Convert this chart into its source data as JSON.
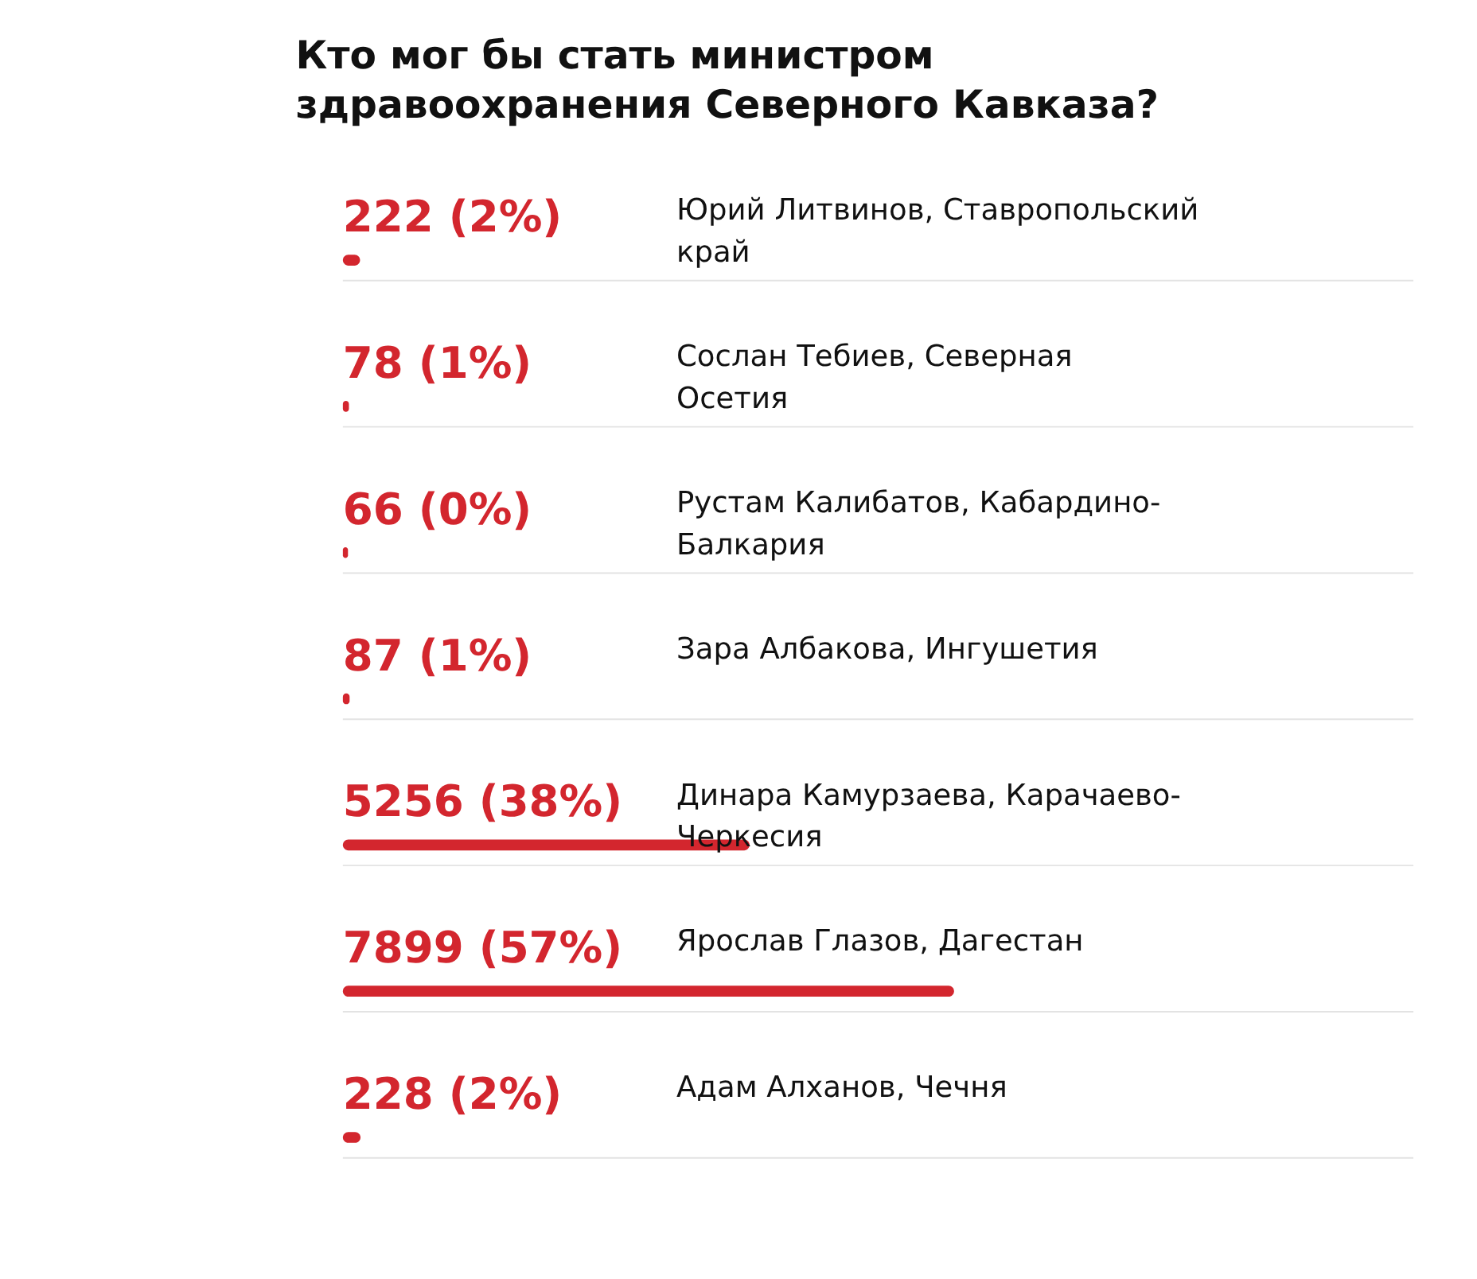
{
  "chart_data": {
    "type": "bar",
    "orientation": "horizontal",
    "title": "Кто мог бы стать министром здравоохранения Северного Кавказа?",
    "categories": [
      "Юрий Литвинов, Ставропольский край",
      "Сослан Тебиев, Северная Осетия",
      "Рустам Калибатов, Кабардино-Балкария",
      "Зара Албакова, Ингушетия",
      "Динара Камурзаева, Карачаево-Черкесия",
      "Ярослав Глазов, Дагестан",
      "Адам Алханов, Чечня"
    ],
    "series": [
      {
        "color": "#d3262e",
        "values": [
          222,
          78,
          66,
          87,
          5256,
          7899,
          228
        ],
        "value_labels": [
          "222 (2%)",
          "78 (1%)",
          "66 (0%)",
          "87 (1%)",
          "5256 (38%)",
          "7899 (57%)",
          "228 (2%)"
        ]
      }
    ],
    "xlim": [
      0,
      13836
    ],
    "tick_labels": false
  }
}
